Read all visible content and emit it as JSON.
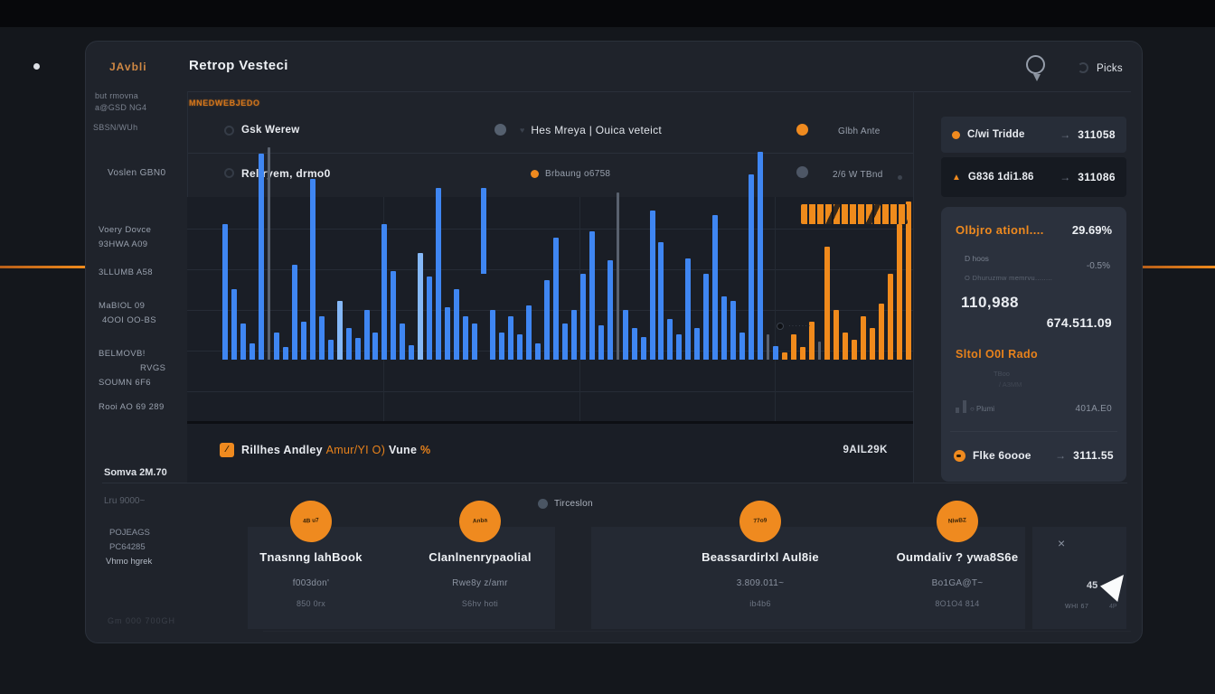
{
  "header": {
    "logo": "JAvbli",
    "title": "Retrop Vesteci",
    "picks": "Picks"
  },
  "sidebar": {
    "top": [
      "but rmovna",
      "a@GSD NG4",
      "SBSN/WUh"
    ],
    "tag": "MNEDWEBJEDO",
    "row2_label": "Voslen GBN0",
    "axis": [
      "Voery Dovce",
      "93HWA A09",
      "3LLUMB A58",
      "MaBIOL 09",
      "4OOI OO-BS",
      "BELMOVB!",
      "RVGS",
      "SOUMN 6F6",
      "Rooi AO 69  289"
    ],
    "bottom": [
      "Somva 2M.70",
      "Lru 9000~",
      "POJEAGS",
      "PC64285",
      "Vhmo hgrek"
    ],
    "faded": "Gm 000 700GH"
  },
  "filters": {
    "row1": {
      "name": "Gsk Werew",
      "mid_icon": "♥",
      "mid": "Hes Mreya | Ouica veteict",
      "right": "Glbh Ante"
    },
    "row2": {
      "name": "Rellryem, drmo0",
      "mid": "Brbaung o6758",
      "right": "2/6 W TBnd"
    }
  },
  "watch": {
    "rowA": {
      "name": "C/wi Tridde",
      "arrow": "→",
      "value": "311058"
    },
    "rowB": {
      "icon": "▲",
      "name": "G836 1di1.86",
      "arrow": "→",
      "value": "311086"
    },
    "bottom": {
      "name": "Flke 6oooe",
      "arrow": "→",
      "value": "3111.55"
    }
  },
  "summary": {
    "title": "Olbjro ationl....",
    "pct": "29.69%",
    "sub": "D hoos",
    "delta": "-0.5%",
    "note": "O Dhuruzmw memrvu........",
    "big": "110,988",
    "total": "674.511.09",
    "title2": "Sltol O0I Rado",
    "faded1": "TBoo",
    "faded2": "/ A3MM",
    "mini": "○ Plumi",
    "val2": "401A.E0"
  },
  "chart_footer": {
    "icon": "∕",
    "name": "Rillhes Andley",
    "accent": "Amur/YI O)",
    "name2": "Vune",
    "pct": "%",
    "right": "9AIL29K"
  },
  "tooltip": {
    "text": "·······"
  },
  "legend": {
    "label": "Tirceslon"
  },
  "cards": [
    {
      "badge": "4B u7",
      "title": "Tnasnng lahBook",
      "v1": "f003don'",
      "v2": "850 0rx"
    },
    {
      "badge": "Anba",
      "title": "Clanlnenrypaolial",
      "v1": "Rwe8y z/amr",
      "v2": "S6hv hoti"
    },
    {
      "badge": "77o9",
      "title": "Beassardirlxl Aul8ie",
      "v1": "3.809.011~",
      "v2": "ib4b6"
    },
    {
      "badge": "NlwBZ",
      "title": "Oumdaliv ? ywa8S6e",
      "v1": "Bo1GA@T~",
      "v2": "8O1O4 814"
    }
  ],
  "mini_panel": {
    "close": "×",
    "num": "45",
    "sub": "WHI 67",
    "extra": "4P"
  },
  "chart_data": {
    "type": "bar",
    "title": "Rillhes Andley volume bars",
    "colors": {
      "b": "#3f86f2",
      "lb": "#85b8f7",
      "o": "#f08a1c",
      "g": "#59616e"
    },
    "ylim": [
      0,
      245
    ],
    "bars": [
      [
        150,
        "b"
      ],
      [
        78,
        "b"
      ],
      [
        40,
        "b"
      ],
      [
        18,
        "b"
      ],
      [
        228,
        "b"
      ],
      [
        235,
        "g"
      ],
      [
        30,
        "b"
      ],
      [
        14,
        "b"
      ],
      [
        105,
        "b"
      ],
      [
        42,
        "b"
      ],
      [
        200,
        "b"
      ],
      [
        48,
        "b"
      ],
      [
        22,
        "b"
      ],
      [
        65,
        "lb"
      ],
      [
        35,
        "b"
      ],
      [
        24,
        "b"
      ],
      [
        55,
        "b"
      ],
      [
        30,
        "b"
      ],
      [
        150,
        "b"
      ],
      [
        98,
        "b"
      ],
      [
        40,
        "b"
      ],
      [
        16,
        "b"
      ],
      [
        118,
        "lb"
      ],
      [
        92,
        "b"
      ],
      [
        190,
        "b"
      ],
      [
        58,
        "b"
      ],
      [
        78,
        "b"
      ],
      [
        48,
        "b"
      ],
      [
        40,
        "b"
      ],
      [
        95,
        "b",
        95
      ],
      [
        55,
        "b"
      ],
      [
        30,
        "b"
      ],
      [
        48,
        "b"
      ],
      [
        28,
        "b"
      ],
      [
        60,
        "b"
      ],
      [
        18,
        "b"
      ],
      [
        88,
        "b"
      ],
      [
        135,
        "b"
      ],
      [
        40,
        "b"
      ],
      [
        55,
        "b"
      ],
      [
        95,
        "b"
      ],
      [
        142,
        "b"
      ],
      [
        38,
        "b"
      ],
      [
        110,
        "b"
      ],
      [
        185,
        "g"
      ],
      [
        55,
        "b"
      ],
      [
        35,
        "b"
      ],
      [
        25,
        "b"
      ],
      [
        165,
        "b"
      ],
      [
        130,
        "b"
      ],
      [
        45,
        "b"
      ],
      [
        28,
        "b"
      ],
      [
        112,
        "b"
      ],
      [
        35,
        "b"
      ],
      [
        95,
        "b"
      ],
      [
        160,
        "b"
      ],
      [
        70,
        "b"
      ],
      [
        65,
        "b"
      ],
      [
        30,
        "b"
      ],
      [
        205,
        "b"
      ],
      [
        230,
        "b"
      ],
      [
        28,
        "g"
      ],
      [
        15,
        "b"
      ],
      [
        8,
        "o"
      ],
      [
        28,
        "o"
      ],
      [
        14,
        "o"
      ],
      [
        42,
        "o"
      ],
      [
        20,
        "g"
      ],
      [
        125,
        "o"
      ],
      [
        55,
        "o"
      ],
      [
        30,
        "o"
      ],
      [
        22,
        "o"
      ],
      [
        48,
        "o"
      ],
      [
        35,
        "o"
      ],
      [
        62,
        "o"
      ],
      [
        95,
        "o"
      ],
      [
        150,
        "o"
      ],
      [
        175,
        "o"
      ]
    ]
  }
}
